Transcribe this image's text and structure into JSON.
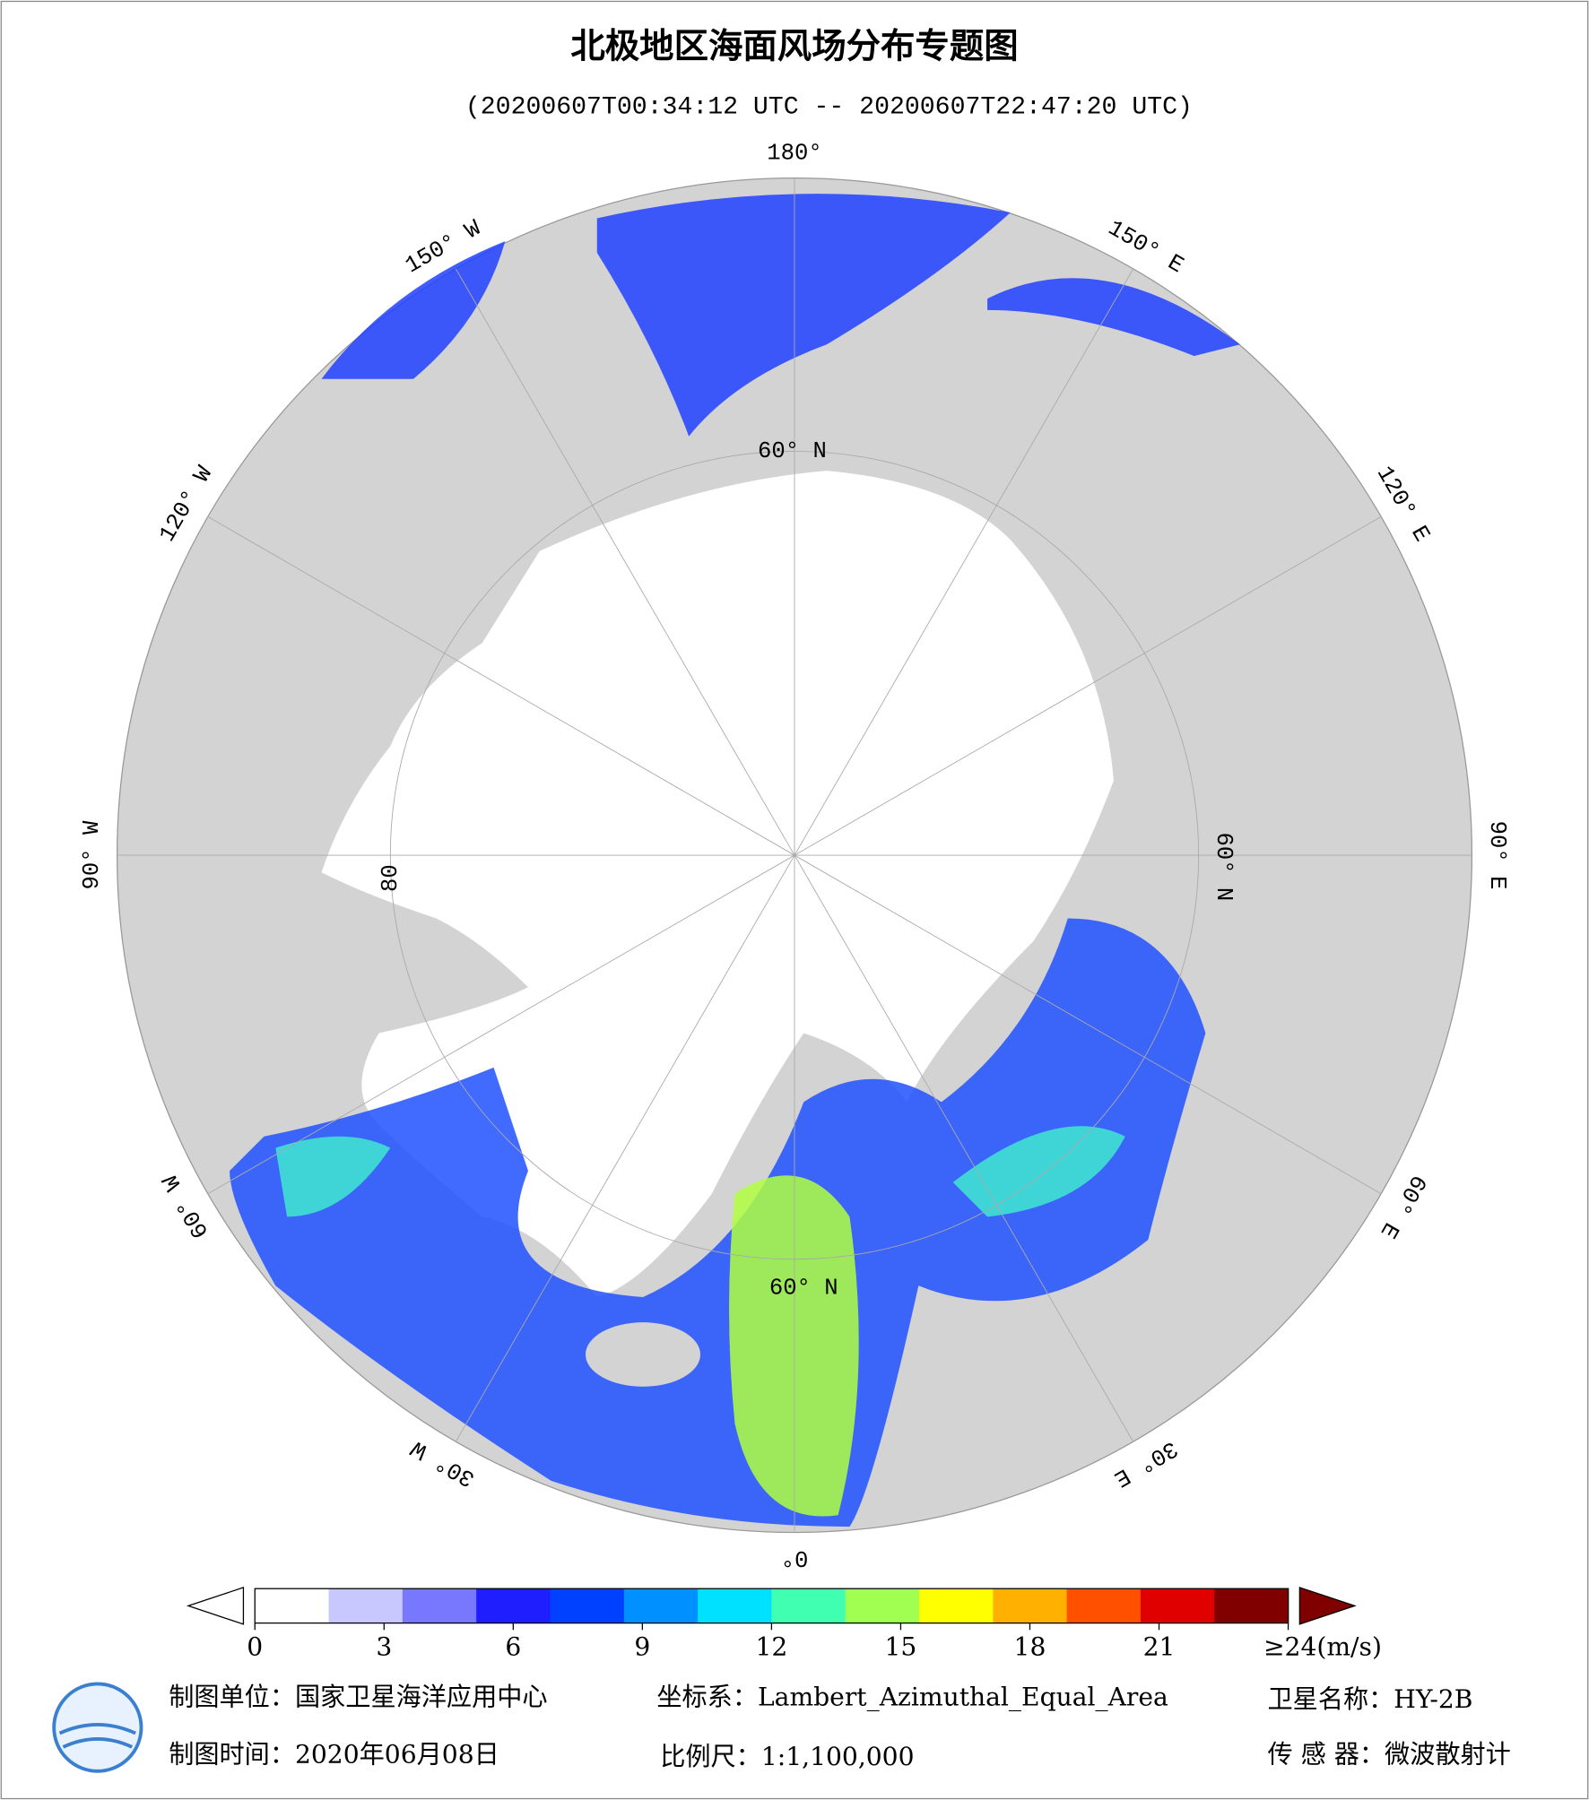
{
  "header": {
    "title": "北极地区海面风场分布专题图",
    "subtitle": "(20200607T00:34:12 UTC -- 20200607T22:47:20 UTC)"
  },
  "map": {
    "longitude_labels": [
      "180°",
      "150° E",
      "120° E",
      "90° E",
      "60° E",
      "30° E",
      "0°",
      "30° W",
      "60° W",
      "90° W",
      "120° W",
      "150° W"
    ],
    "latitude_labels": [
      "60° N",
      "60° N",
      "60° N",
      "80"
    ]
  },
  "colorbar": {
    "lim": [
      0,
      24
    ],
    "ticks": [
      0,
      3,
      6,
      9,
      12,
      15,
      18,
      21,
      {
        "value": 24,
        "label": "≥24(m/s)"
      }
    ],
    "colors": [
      "#ffffff",
      "#c8c8ff",
      "#7878ff",
      "#1e1eff",
      "#0040ff",
      "#0090ff",
      "#00e0ff",
      "#40ffb0",
      "#a0ff50",
      "#ffff00",
      "#ffb000",
      "#ff5000",
      "#e00000",
      "#800000"
    ]
  },
  "footer": {
    "unit": "制图单位：国家卫星海洋应用中心",
    "coords": "坐标系：Lambert_Azimuthal_Equal_Area",
    "satellite": "卫星名称：HY-2B",
    "date": "制图时间：2020年06月08日",
    "scale": "比例尺：1:1,100,000",
    "sensor": "传 感 器：微波散射计"
  }
}
